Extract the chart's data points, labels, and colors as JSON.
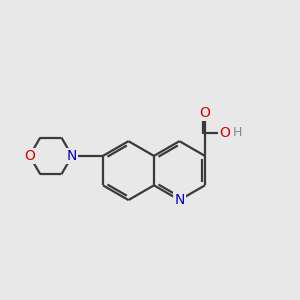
{
  "bg_color": "#e8e8e8",
  "bond_color": "#3a3a3a",
  "bond_width": 1.6,
  "atom_colors": {
    "N": "#0000cc",
    "O": "#dd0000",
    "H": "#888888"
  },
  "font_size_atom": 10,
  "font_size_H": 9,
  "xlim": [
    0,
    10
  ],
  "ylim": [
    0,
    10
  ]
}
